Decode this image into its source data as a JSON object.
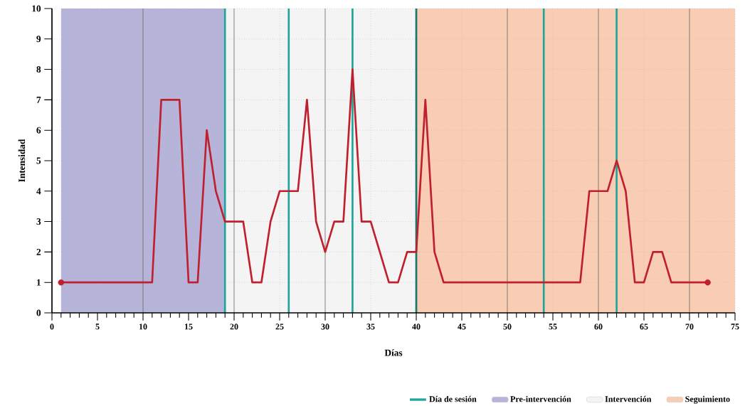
{
  "chart_data": {
    "type": "line",
    "xlabel": "Días",
    "ylabel": "Intensidad",
    "xlim": [
      0,
      75
    ],
    "ylim": [
      0,
      10
    ],
    "xticks": [
      0,
      5,
      10,
      15,
      20,
      25,
      30,
      35,
      40,
      45,
      50,
      55,
      60,
      65,
      70,
      75
    ],
    "yticks": [
      0,
      1,
      2,
      3,
      4,
      5,
      6,
      7,
      8,
      9,
      10
    ],
    "grid": true,
    "legend": "bottom right",
    "series": [
      {
        "color": "#c0202e",
        "x": [
          1,
          2,
          3,
          4,
          5,
          6,
          7,
          8,
          9,
          10,
          11,
          12,
          13,
          14,
          15,
          16,
          17,
          18,
          19,
          20,
          21,
          22,
          23,
          24,
          25,
          26,
          27,
          28,
          29,
          30,
          31,
          32,
          33,
          34,
          35,
          36,
          37,
          38,
          39,
          40,
          41,
          42,
          43,
          44,
          45,
          46,
          47,
          48,
          49,
          50,
          51,
          52,
          53,
          54,
          55,
          56,
          57,
          58,
          59,
          60,
          61,
          62,
          63,
          64,
          65,
          66,
          67,
          68,
          69,
          70,
          71,
          72
        ],
        "values": [
          1,
          1,
          1,
          1,
          1,
          1,
          1,
          1,
          1,
          1,
          1,
          7,
          7,
          7,
          1,
          1,
          6,
          4,
          3,
          3,
          3,
          1,
          1,
          3,
          4,
          4,
          4,
          7,
          3,
          2,
          3,
          3,
          8,
          3,
          3,
          2,
          1,
          1,
          2,
          2,
          7,
          2,
          1,
          1,
          1,
          1,
          1,
          1,
          1,
          1,
          1,
          1,
          1,
          1,
          1,
          1,
          1,
          1,
          4,
          4,
          4,
          5,
          4,
          1,
          1,
          2,
          2,
          1,
          1,
          1,
          1,
          1
        ]
      },
      {
        "type": "scatter",
        "color": "#c0202e",
        "x": [
          1,
          72
        ],
        "values": [
          1,
          1
        ],
        "marker": "circle"
      }
    ],
    "ref_lines": [
      {
        "axis": "x",
        "value": 19,
        "label": "Día de sesión",
        "color": "#1fa59a"
      },
      {
        "axis": "x",
        "value": 26,
        "color": "#1fa59a"
      },
      {
        "axis": "x",
        "value": 33,
        "color": "#1fa59a"
      },
      {
        "axis": "x",
        "value": 40,
        "color": "#17766e"
      },
      {
        "axis": "x",
        "value": 54,
        "color": "#1fa59a"
      },
      {
        "axis": "x",
        "value": 62,
        "color": "#1fa59a"
      }
    ],
    "bands": [
      {
        "axis": "x",
        "from": 1,
        "to": 19,
        "label": "Pre-intervención",
        "color": "#b6b4d9"
      },
      {
        "axis": "x",
        "from": 19,
        "to": 40,
        "label": "Intervención",
        "color": "#f4f4f4"
      },
      {
        "axis": "x",
        "from": 40,
        "to": 75,
        "label": "Seguimiento",
        "color": "#f9cdb3"
      }
    ]
  }
}
